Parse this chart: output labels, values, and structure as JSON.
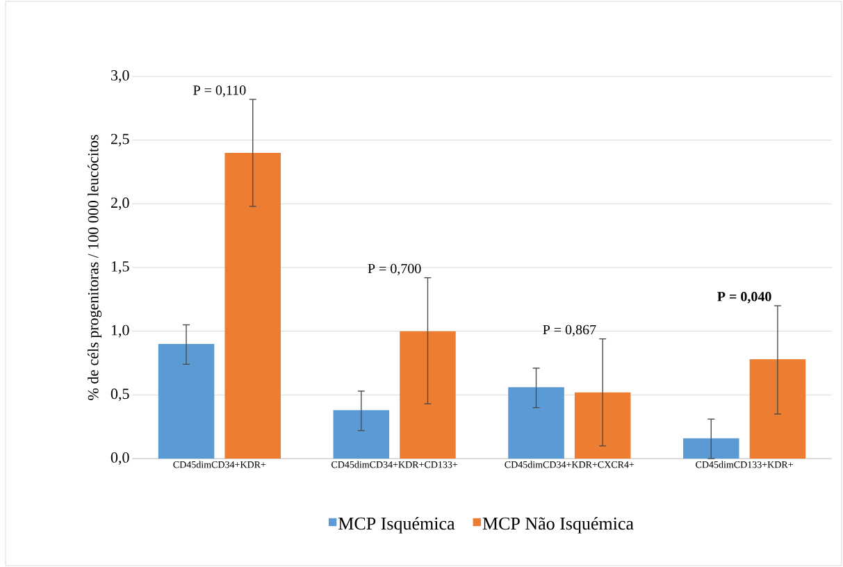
{
  "chart_data": {
    "type": "bar",
    "ylabel": "% de céls progenitoras / 100 000 leucócitos",
    "categories": [
      "CD45dimCD34+KDR+",
      "CD45dimCD34+KDR+CD133+",
      "CD45dimCD34+KDR+CXCR4+",
      "CD45dimCD133+KDR+"
    ],
    "series": [
      {
        "name": "MCP Isquémica",
        "color": "#5b9bd5",
        "values": [
          0.9,
          0.38,
          0.56,
          0.16
        ],
        "errors": [
          [
            0.74,
            1.05
          ],
          [
            0.22,
            0.53
          ],
          [
            0.4,
            0.71
          ],
          [
            0.0,
            0.31
          ]
        ]
      },
      {
        "name": "MCP Não Isquémica",
        "color": "#ed7d31",
        "values": [
          2.4,
          1.0,
          0.52,
          0.78
        ],
        "errors": [
          [
            1.98,
            2.82
          ],
          [
            0.43,
            1.42
          ],
          [
            0.1,
            0.94
          ],
          [
            0.35,
            1.2
          ]
        ]
      }
    ],
    "annotations": [
      "P = 0,110",
      "P = 0,700",
      "P = 0,867",
      "**P = 0,040**"
    ],
    "ylim": [
      0,
      3.0
    ],
    "yticks": [
      {
        "value": 0,
        "label": "0,0"
      },
      {
        "value": 0.5,
        "label": "0,5"
      },
      {
        "value": 1.0,
        "label": "1,0"
      },
      {
        "value": 1.5,
        "label": "1,5"
      },
      {
        "value": 2.0,
        "label": "2,0"
      },
      {
        "value": 2.5,
        "label": "2,5"
      },
      {
        "value": 3.0,
        "label": "3,0"
      }
    ],
    "grid": "y",
    "legend": "bottom"
  }
}
